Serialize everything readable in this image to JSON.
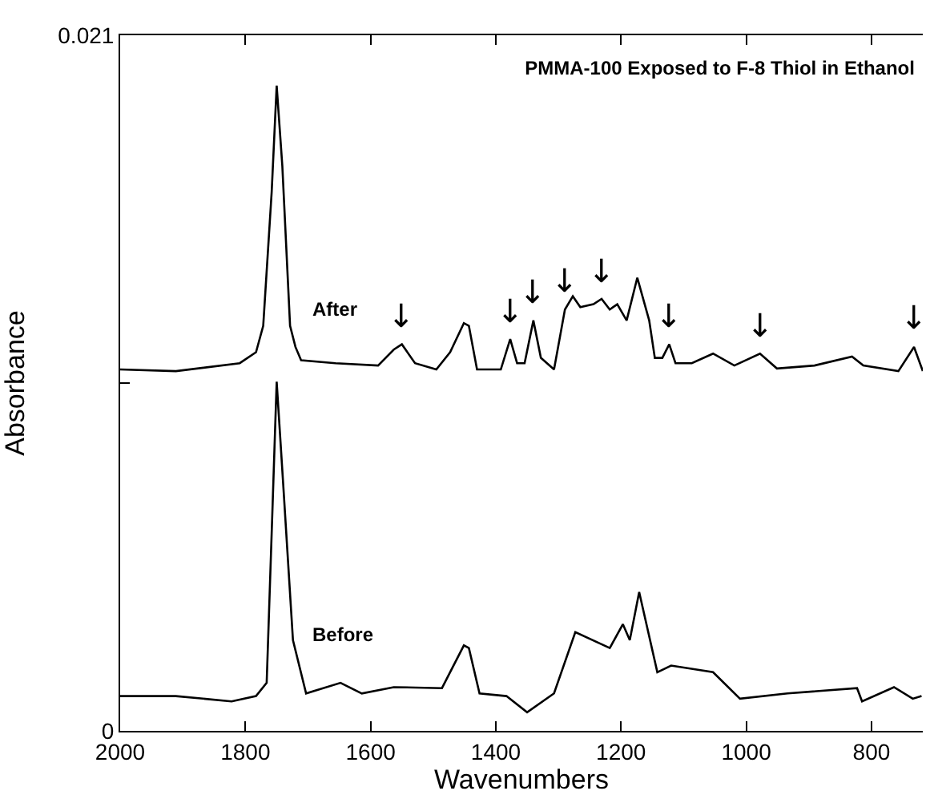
{
  "chart_data": {
    "type": "line",
    "title": "PMMA-100 Exposed to F-8 Thiol in Ethanol",
    "xlabel": "Wavenumbers",
    "ylabel": "Absorbance",
    "xlim": [
      2000,
      718
    ],
    "xticks": [
      2000,
      1800,
      1600,
      1400,
      1200,
      1000,
      800
    ],
    "ylim": [
      0,
      0.021
    ],
    "yticks": [
      0,
      {
        "value": 0.0105,
        "label": null
      },
      0.021
    ],
    "grid": false,
    "legend": false,
    "marker": "none",
    "line_style": "solid",
    "series": [
      {
        "name": "After",
        "color": "#000000",
        "x": [
          2000,
          1911,
          1809,
          1783,
          1771.5,
          1758,
          1750,
          1741,
          1728.6,
          1720,
          1711,
          1656,
          1588,
          1563,
          1550,
          1529,
          1495,
          1473,
          1451,
          1443,
          1430,
          1392,
          1377,
          1366,
          1354,
          1340,
          1328,
          1307,
          1289.6,
          1277,
          1265,
          1244,
          1231,
          1218,
          1206,
          1191,
          1174,
          1155,
          1146,
          1134,
          1123,
          1113,
          1087,
          1053,
          1019,
          978,
          951,
          891,
          831,
          813,
          757,
          732,
          718
        ],
        "values": [
          0.01091,
          0.01086,
          0.0111,
          0.01143,
          0.01223,
          0.01626,
          0.01948,
          0.01706,
          0.01223,
          0.01159,
          0.01119,
          0.0111,
          0.01103,
          0.01151,
          0.01167,
          0.0111,
          0.01091,
          0.01143,
          0.01231,
          0.01223,
          0.01091,
          0.01091,
          0.01183,
          0.0111,
          0.0111,
          0.01239,
          0.01126,
          0.01091,
          0.01272,
          0.01312,
          0.01279,
          0.01288,
          0.01304,
          0.01272,
          0.01288,
          0.01239,
          0.01368,
          0.01239,
          0.01126,
          0.01126,
          0.01167,
          0.0111,
          0.0111,
          0.01139,
          0.01103,
          0.01139,
          0.01094,
          0.01103,
          0.0113,
          0.01103,
          0.01086,
          0.01159,
          0.01086
        ]
      },
      {
        "name": "Before",
        "color": "#000000",
        "x": [
          2000,
          1911,
          1822,
          1783,
          1766,
          1758,
          1750,
          1740,
          1724,
          1703,
          1648,
          1614,
          1563,
          1486,
          1451,
          1443,
          1426,
          1383,
          1350,
          1307,
          1273,
          1218,
          1197,
          1186,
          1171,
          1142,
          1120,
          1053,
          1010,
          934,
          823,
          815,
          764,
          734,
          720
        ],
        "values": [
          0.00105,
          0.00105,
          0.00089,
          0.00105,
          0.00145,
          0.00596,
          0.01054,
          0.00757,
          0.00274,
          0.00113,
          0.00145,
          0.00113,
          0.00132,
          0.00129,
          0.00258,
          0.0025,
          0.00113,
          0.00105,
          0.00056,
          0.00113,
          0.00298,
          0.0025,
          0.00322,
          0.00274,
          0.00419,
          0.00177,
          0.00197,
          0.00177,
          0.00097,
          0.00113,
          0.00129,
          0.00089,
          0.00132,
          0.00097,
          0.00105
        ]
      }
    ],
    "annotations": [
      {
        "text": "↓",
        "x": 1550,
        "y": 0.01167
      },
      {
        "text": "↓",
        "x": 1377,
        "y": 0.01183
      },
      {
        "text": "↓",
        "x": 1340,
        "y": 0.01239
      },
      {
        "text": "↓",
        "x": 1289.6,
        "y": 0.01272
      },
      {
        "text": "↓",
        "x": 1231,
        "y": 0.01304
      },
      {
        "text": "↓",
        "x": 1123,
        "y": 0.01167
      },
      {
        "text": "↓",
        "x": 978,
        "y": 0.01139
      },
      {
        "text": "↓",
        "x": 732,
        "y": 0.01159
      }
    ]
  }
}
